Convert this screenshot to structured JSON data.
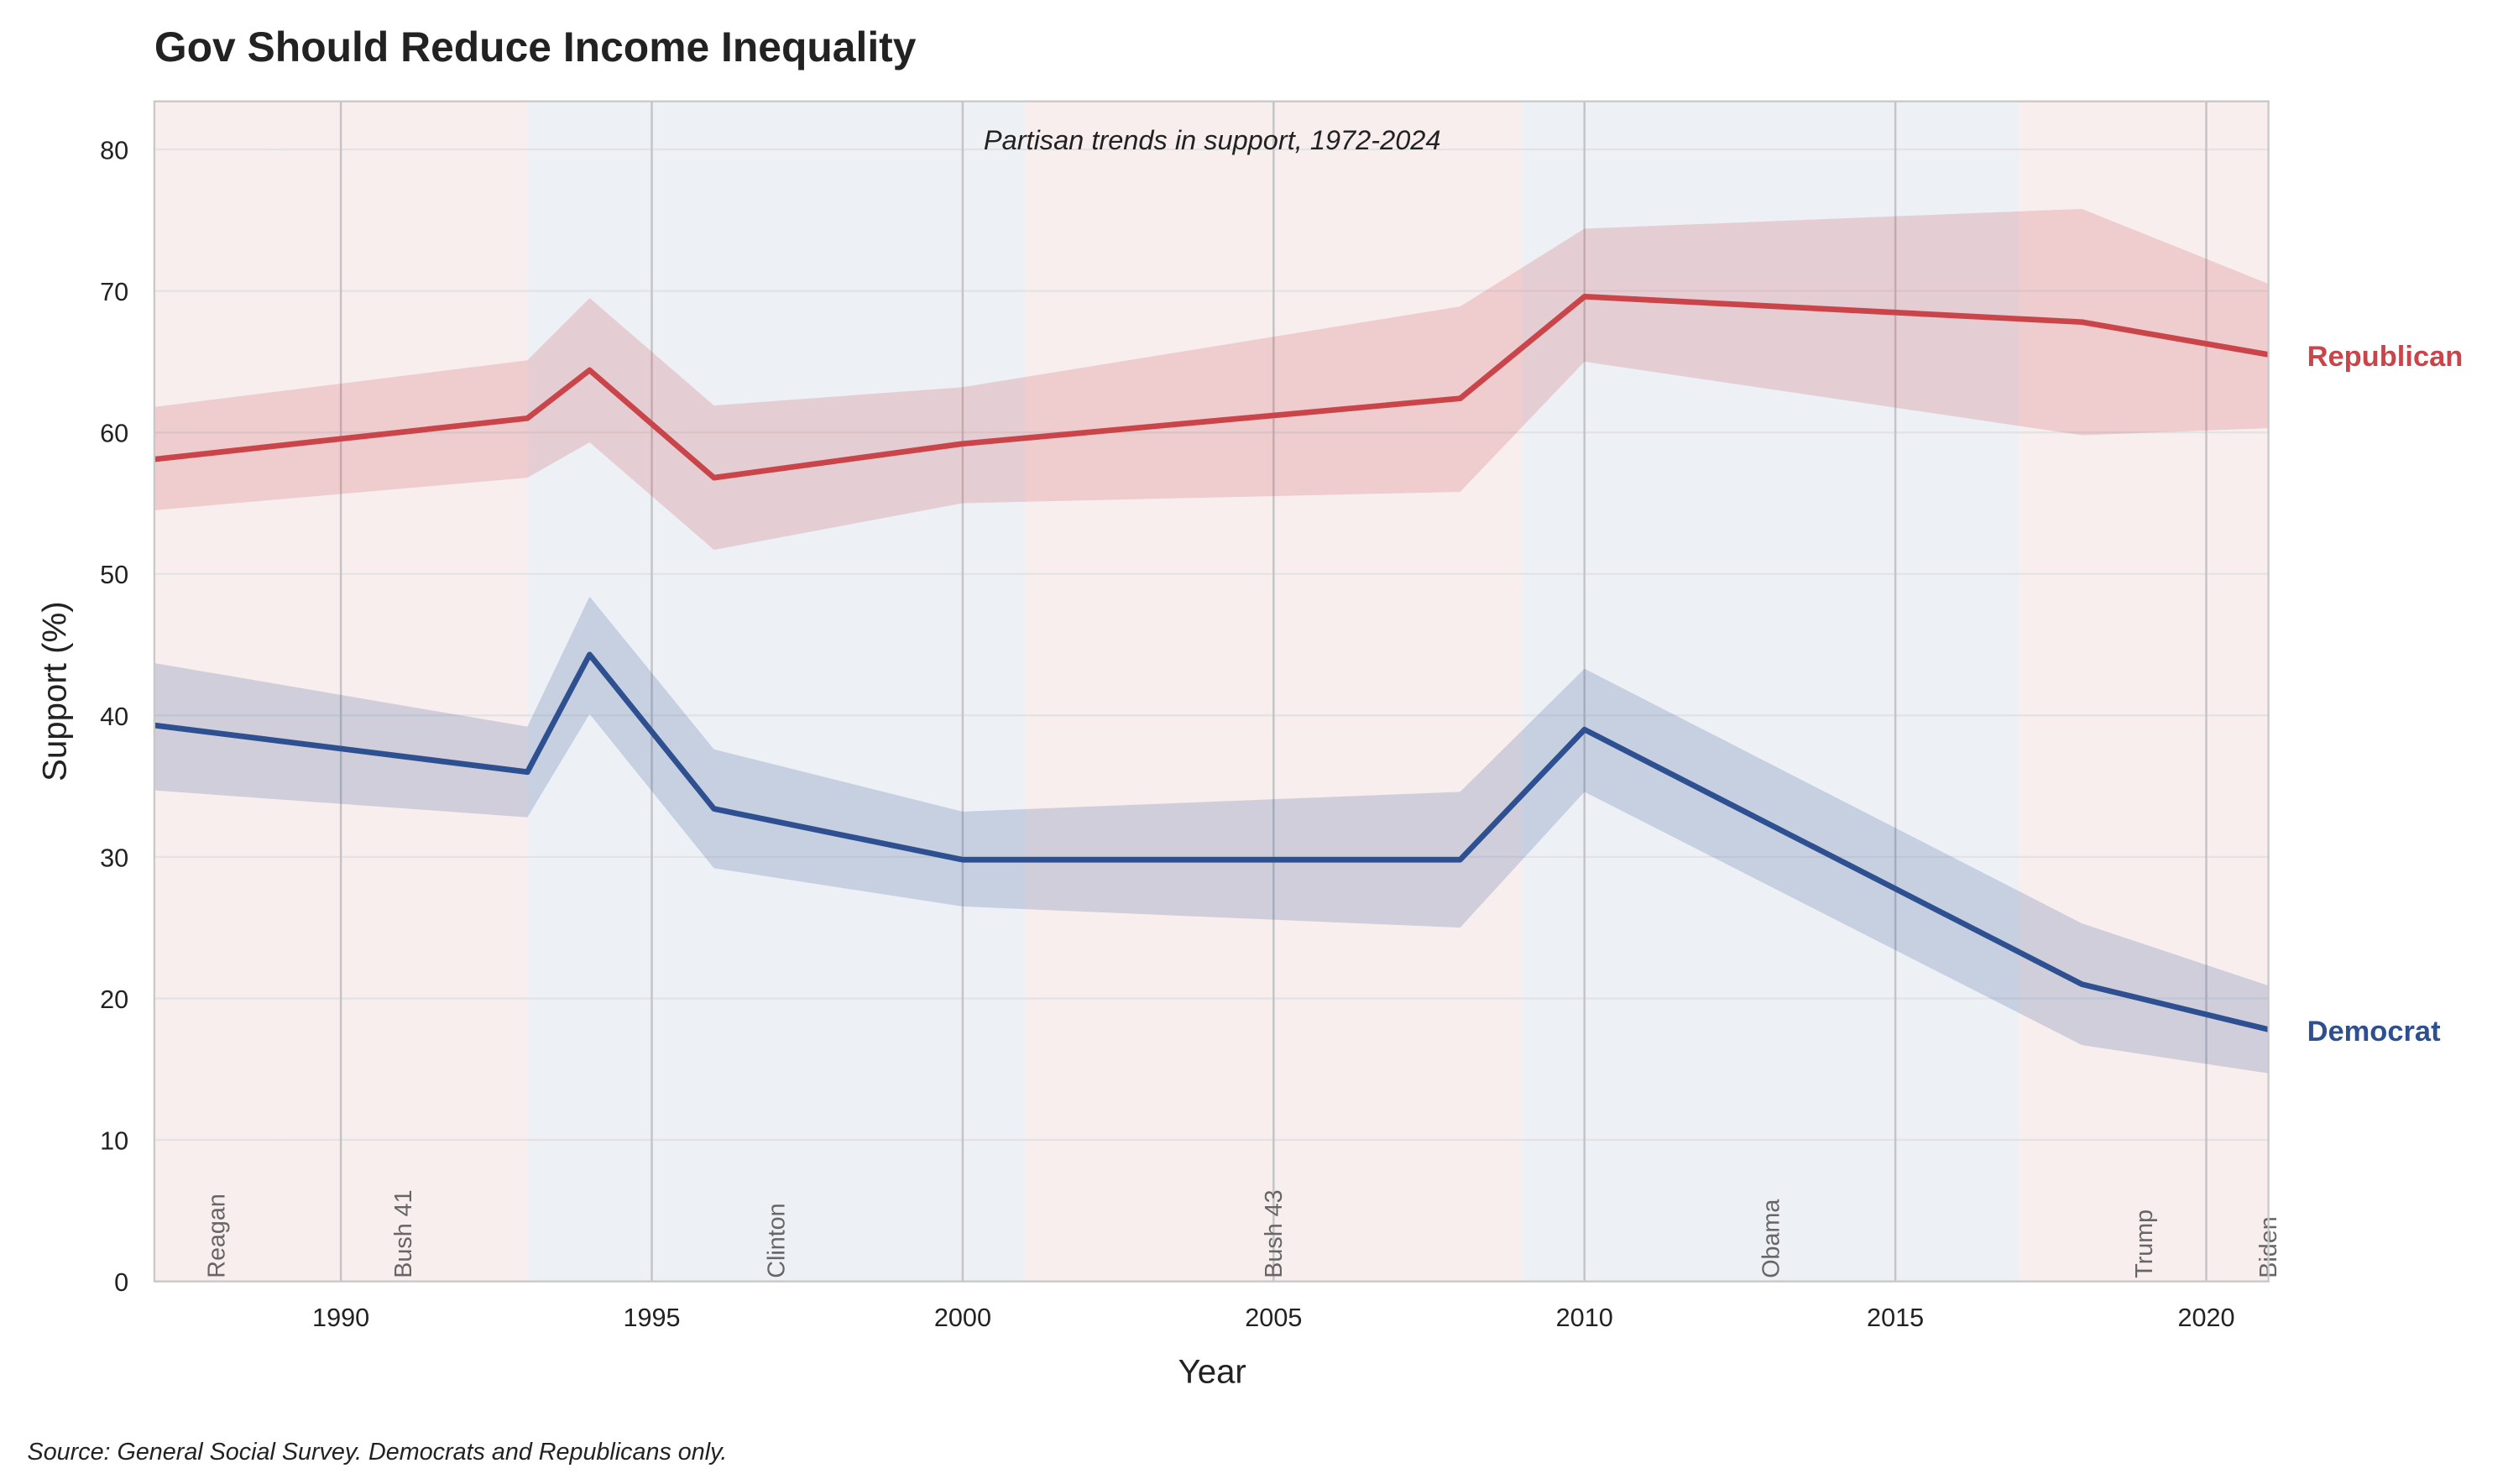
{
  "chart_data": {
    "type": "line",
    "title": "Gov Should Reduce Income Inequality",
    "subtitle": "Partisan trends in support, 1972-2024",
    "xlabel": "Year",
    "ylabel": "Support (%)",
    "source": "Source: General Social Survey. Democrats and Republicans only.",
    "xlim": [
      1987,
      2021
    ],
    "ylim": [
      0,
      83.4
    ],
    "xticks": [
      1990,
      1995,
      2000,
      2005,
      2010,
      2015,
      2020
    ],
    "yticks": [
      0,
      10,
      20,
      30,
      40,
      50,
      60,
      70,
      80
    ],
    "grid": true,
    "series": [
      {
        "name": "Republican",
        "color": "#c9454a",
        "x": [
          1987,
          1993,
          1994,
          1996,
          2000,
          2008,
          2010,
          2018,
          2021
        ],
        "values": [
          58.1,
          61.0,
          64.4,
          56.8,
          59.2,
          62.4,
          69.6,
          67.8,
          65.5
        ],
        "lower": [
          54.5,
          56.8,
          59.3,
          51.7,
          55.0,
          55.8,
          65.0,
          59.8,
          60.3
        ],
        "upper": [
          61.8,
          65.1,
          69.5,
          61.9,
          63.2,
          68.9,
          74.4,
          75.8,
          70.5
        ]
      },
      {
        "name": "Democrat",
        "color": "#2e5090",
        "x": [
          1987,
          1993,
          1994,
          1996,
          2000,
          2008,
          2010,
          2018,
          2021
        ],
        "values": [
          39.3,
          36.0,
          44.3,
          33.4,
          29.8,
          29.8,
          39.0,
          21.0,
          17.8
        ],
        "lower": [
          34.7,
          32.8,
          40.1,
          29.2,
          26.5,
          25.0,
          34.6,
          16.7,
          14.7
        ],
        "upper": [
          43.7,
          39.2,
          48.4,
          37.6,
          33.2,
          34.6,
          43.3,
          25.3,
          20.9
        ]
      }
    ],
    "presidents": [
      {
        "name": "Reagan",
        "start": 1981,
        "end": 1989,
        "party": "R",
        "label_x": 1988
      },
      {
        "name": "Bush 41",
        "start": 1989,
        "end": 1993,
        "party": "R",
        "label_x": 1991
      },
      {
        "name": "Clinton",
        "start": 1993,
        "end": 2001,
        "party": "D",
        "label_x": 1997
      },
      {
        "name": "Bush 43",
        "start": 2001,
        "end": 2009,
        "party": "R",
        "label_x": 2005
      },
      {
        "name": "Obama",
        "start": 2009,
        "end": 2017,
        "party": "D",
        "label_x": 2013
      },
      {
        "name": "Trump",
        "start": 2017,
        "end": 2021,
        "party": "R",
        "label_x": 2019
      },
      {
        "name": "Biden",
        "start": 2021,
        "end": 2025,
        "party": "D",
        "label_x": 2021
      }
    ],
    "shade_colors": {
      "R": "#f9eeee",
      "D": "#edf0f5"
    }
  }
}
